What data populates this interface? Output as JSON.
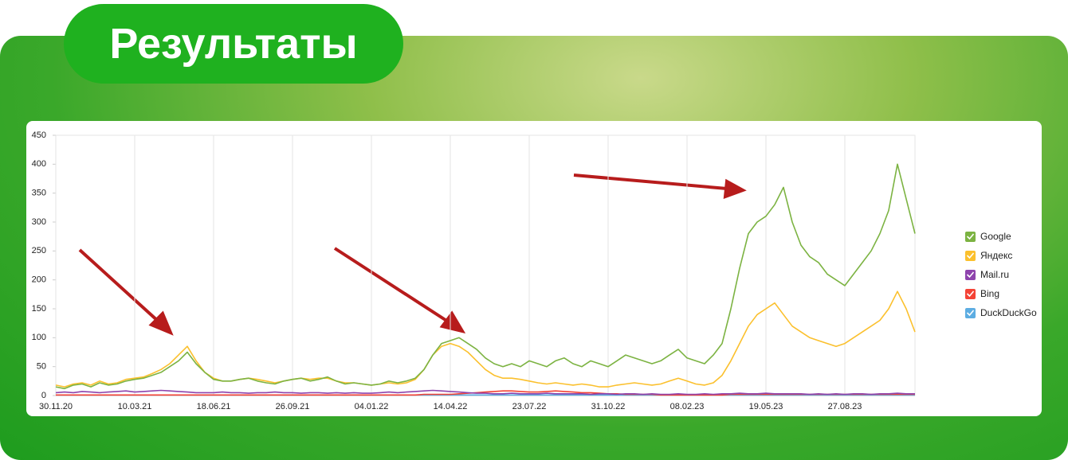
{
  "header": {
    "title": "Результаты"
  },
  "chart_data": {
    "type": "line",
    "categories": [
      "30.11.20",
      null,
      null,
      null,
      null,
      null,
      null,
      null,
      null,
      "10.03.21",
      null,
      null,
      null,
      null,
      null,
      null,
      null,
      null,
      "18.06.21",
      null,
      null,
      null,
      null,
      null,
      null,
      null,
      null,
      "26.09.21",
      null,
      null,
      null,
      null,
      null,
      null,
      null,
      null,
      "04.01.22",
      null,
      null,
      null,
      null,
      null,
      null,
      null,
      null,
      "14.04.22",
      null,
      null,
      null,
      null,
      null,
      null,
      null,
      null,
      "23.07.22",
      null,
      null,
      null,
      null,
      null,
      null,
      null,
      null,
      "31.10.22",
      null,
      null,
      null,
      null,
      null,
      null,
      null,
      null,
      "08.02.23",
      null,
      null,
      null,
      null,
      null,
      null,
      null,
      null,
      "19.05.23",
      null,
      null,
      null,
      null,
      null,
      null,
      null,
      null,
      "27.08.23",
      null,
      null,
      null,
      null,
      null,
      null,
      null,
      null
    ],
    "series": [
      {
        "name": "Google",
        "color": "#7cb342",
        "values": [
          15,
          12,
          18,
          20,
          15,
          22,
          18,
          20,
          25,
          28,
          30,
          35,
          40,
          50,
          60,
          75,
          55,
          40,
          28,
          25,
          25,
          28,
          30,
          25,
          22,
          20,
          25,
          28,
          30,
          25,
          28,
          32,
          25,
          20,
          22,
          20,
          18,
          20,
          25,
          22,
          25,
          30,
          45,
          70,
          90,
          95,
          100,
          90,
          80,
          65,
          55,
          50,
          55,
          50,
          60,
          55,
          50,
          60,
          65,
          55,
          50,
          60,
          55,
          50,
          60,
          70,
          65,
          60,
          55,
          60,
          70,
          80,
          65,
          60,
          55,
          70,
          90,
          150,
          220,
          280,
          300,
          310,
          330,
          360,
          300,
          260,
          240,
          230,
          210,
          200,
          190,
          210,
          230,
          250,
          280,
          320,
          400,
          340,
          280
        ]
      },
      {
        "name": "Яндекс",
        "color": "#fbc02d",
        "values": [
          18,
          15,
          20,
          22,
          18,
          25,
          20,
          22,
          28,
          30,
          32,
          38,
          45,
          55,
          70,
          85,
          60,
          40,
          30,
          25,
          25,
          28,
          30,
          28,
          25,
          22,
          25,
          28,
          30,
          28,
          30,
          30,
          25,
          22,
          22,
          20,
          18,
          20,
          22,
          20,
          22,
          28,
          45,
          70,
          85,
          90,
          85,
          75,
          60,
          45,
          35,
          30,
          30,
          28,
          25,
          22,
          20,
          22,
          20,
          18,
          20,
          18,
          15,
          15,
          18,
          20,
          22,
          20,
          18,
          20,
          25,
          30,
          25,
          20,
          18,
          22,
          35,
          60,
          90,
          120,
          140,
          150,
          160,
          140,
          120,
          110,
          100,
          95,
          90,
          85,
          90,
          100,
          110,
          120,
          130,
          150,
          180,
          150,
          110
        ]
      },
      {
        "name": "Mail.ru",
        "color": "#8e44ad",
        "values": [
          5,
          6,
          5,
          7,
          6,
          5,
          6,
          7,
          8,
          6,
          7,
          8,
          9,
          8,
          7,
          6,
          5,
          5,
          5,
          6,
          5,
          5,
          4,
          5,
          5,
          6,
          5,
          5,
          4,
          5,
          5,
          4,
          5,
          4,
          5,
          4,
          4,
          5,
          6,
          5,
          6,
          7,
          8,
          9,
          8,
          7,
          6,
          5,
          4,
          4,
          3,
          3,
          4,
          3,
          3,
          3,
          4,
          3,
          3,
          3,
          3,
          2,
          3,
          3,
          2,
          3,
          3,
          2,
          3,
          2,
          2,
          3,
          2,
          2,
          3,
          2,
          3,
          3,
          4,
          3,
          3,
          4,
          3,
          3,
          3,
          3,
          2,
          3,
          2,
          3,
          2,
          3,
          3,
          2,
          3,
          3,
          4,
          3,
          3
        ]
      },
      {
        "name": "Bing",
        "color": "#f44336",
        "values": [
          1,
          1,
          1,
          1,
          1,
          1,
          1,
          1,
          1,
          1,
          1,
          1,
          1,
          1,
          1,
          1,
          1,
          1,
          1,
          1,
          1,
          1,
          1,
          1,
          1,
          1,
          1,
          1,
          1,
          1,
          1,
          1,
          1,
          1,
          1,
          1,
          1,
          1,
          1,
          1,
          1,
          1,
          2,
          2,
          2,
          2,
          3,
          4,
          5,
          6,
          7,
          8,
          8,
          7,
          6,
          6,
          7,
          8,
          7,
          6,
          5,
          5,
          4,
          3,
          3,
          2,
          2,
          2,
          2,
          1,
          1,
          1,
          1,
          1,
          1,
          1,
          1,
          2,
          2,
          2,
          2,
          2,
          2,
          2,
          2,
          2,
          2,
          2,
          2,
          2,
          2,
          2,
          2,
          2,
          2,
          2,
          2,
          2,
          2
        ]
      },
      {
        "name": "DuckDuckGo",
        "color": "#5dade2",
        "values": [
          1,
          1,
          1,
          1,
          1,
          1,
          1,
          1,
          1,
          1,
          1,
          1,
          1,
          1,
          1,
          1,
          1,
          1,
          1,
          1,
          1,
          1,
          1,
          1,
          1,
          1,
          1,
          1,
          1,
          1,
          1,
          1,
          1,
          1,
          1,
          1,
          1,
          1,
          1,
          1,
          1,
          1,
          1,
          1,
          1,
          1,
          1,
          1,
          1,
          1,
          1,
          1,
          1,
          1,
          1,
          1,
          1,
          1,
          1,
          1,
          1,
          1,
          1,
          1,
          1,
          1,
          1,
          1,
          1,
          1,
          1,
          1,
          1,
          1,
          1,
          1,
          1,
          1,
          1,
          1,
          1,
          1,
          1,
          1,
          1,
          1,
          1,
          1,
          1,
          1,
          1,
          1,
          1,
          1,
          1,
          1,
          1,
          1,
          1
        ]
      }
    ],
    "ylim": [
      0,
      450
    ],
    "yticks": [
      0,
      50,
      100,
      150,
      200,
      250,
      300,
      350,
      400,
      450
    ],
    "grid": true,
    "legend": "right"
  }
}
